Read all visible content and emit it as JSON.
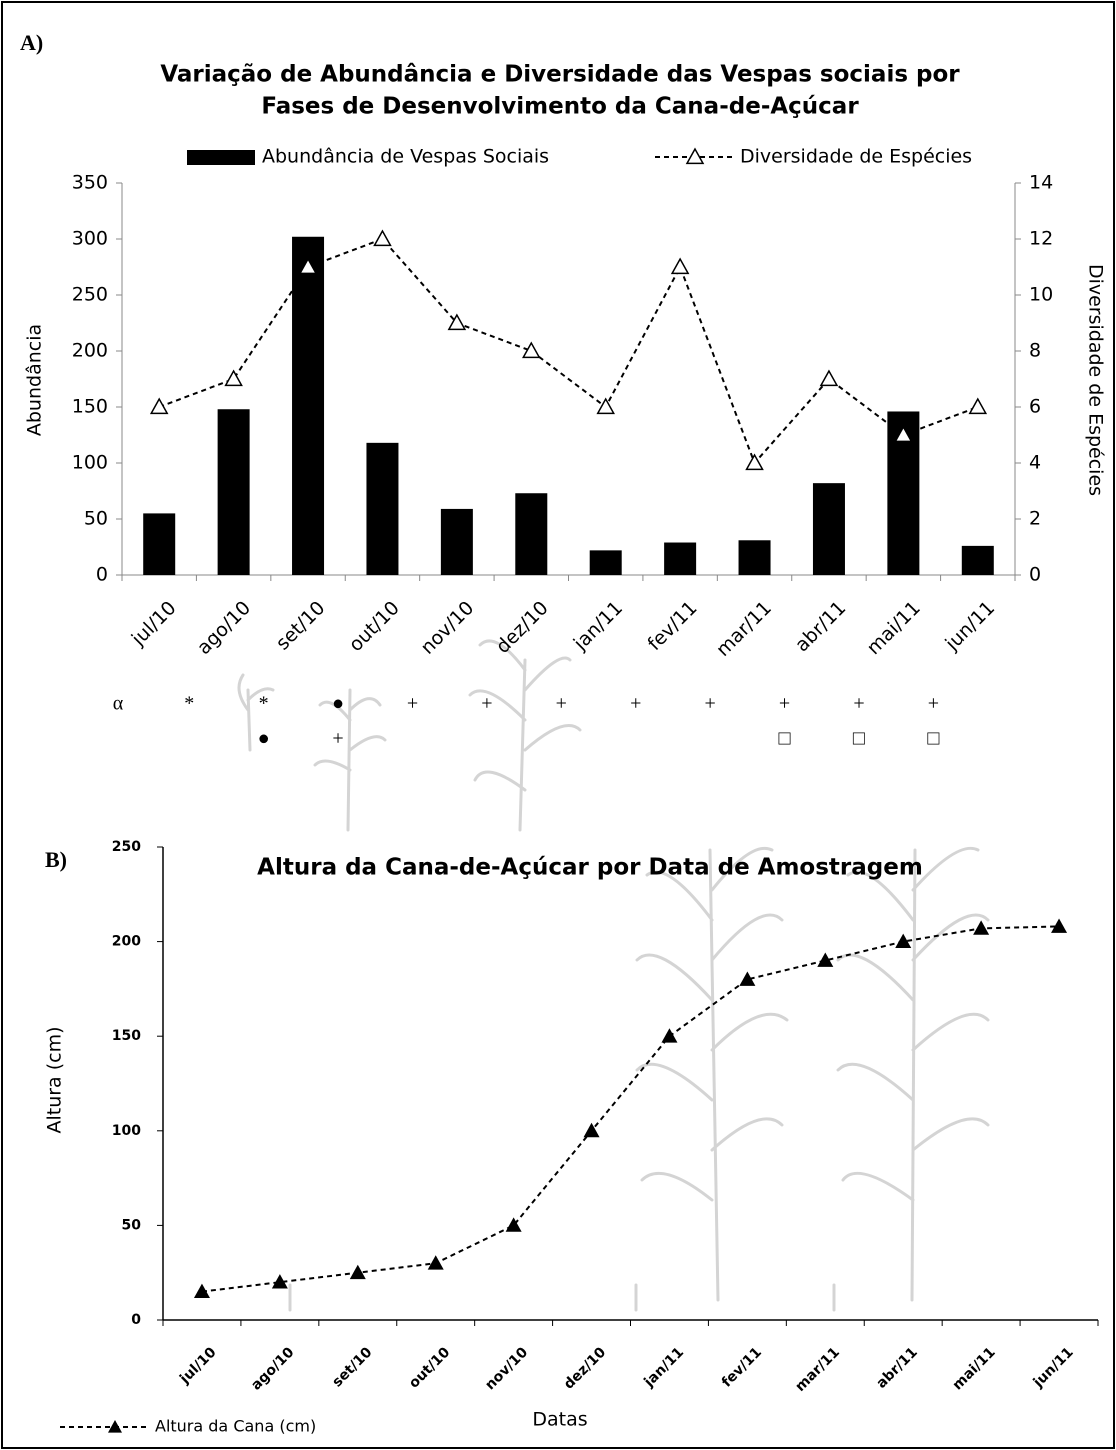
{
  "chart_data": [
    {
      "type": "bar",
      "panel": "A)",
      "title": [
        "Variação de Abundância e Diversidade das Vespas sociais por",
        "Fases de Desenvolvimento da Cana-de-Açúcar"
      ],
      "categories": [
        "jul/10",
        "ago/10",
        "set/10",
        "out/10",
        "nov/10",
        "dez/10",
        "jan/11",
        "fev/11",
        "mar/11",
        "abr/11",
        "mai/11",
        "jun/11"
      ],
      "series": [
        {
          "name": "Abundância de Vespas Sociais",
          "color": "#000000",
          "values": [
            55,
            148,
            302,
            118,
            59,
            73,
            22,
            29,
            31,
            82,
            146,
            26
          ]
        },
        {
          "name": "Diversidade de Espécies",
          "color": "#000000",
          "type": "line",
          "axis": "y2",
          "values": [
            6,
            7,
            11,
            12,
            9,
            8,
            6,
            11,
            4,
            7,
            5,
            6
          ]
        }
      ],
      "ylabel": "Abundância",
      "y2label": "Diversidade de Espécies",
      "ylim": [
        0,
        350
      ],
      "yticks": [
        0,
        50,
        100,
        150,
        200,
        250,
        300,
        350
      ],
      "y2lim": [
        0,
        14
      ],
      "y2ticks": [
        0,
        2,
        4,
        6,
        8,
        10,
        12,
        14
      ],
      "annotations": {
        "label": "α",
        "columns": [
          [
            "*"
          ],
          [
            "*",
            "●"
          ],
          [
            "●",
            "+"
          ],
          [
            "+"
          ],
          [
            "+"
          ],
          [
            "+"
          ],
          [
            "+"
          ],
          [
            "+"
          ],
          [
            "+",
            "□"
          ],
          [
            "+",
            "□"
          ],
          [
            "+",
            "□"
          ]
        ]
      }
    },
    {
      "type": "line",
      "panel": "B)",
      "title": "Altura da Cana-de-Açúcar por Data de Amostragem",
      "categories": [
        "jul/10",
        "ago/10",
        "set/10",
        "out/10",
        "nov/10",
        "dez/10",
        "jan/11",
        "fev/11",
        "mar/11",
        "abr/11",
        "mai/11",
        "jun/11"
      ],
      "series": [
        {
          "name": "Altura da Cana (cm)",
          "color": "#000000",
          "values": [
            15,
            20,
            25,
            30,
            50,
            100,
            150,
            180,
            190,
            200,
            207,
            208
          ]
        }
      ],
      "xlabel": "Datas",
      "ylabel": "Altura (cm)",
      "ylim": [
        0,
        250
      ],
      "yticks": [
        0,
        50,
        100,
        150,
        200,
        250
      ]
    }
  ]
}
